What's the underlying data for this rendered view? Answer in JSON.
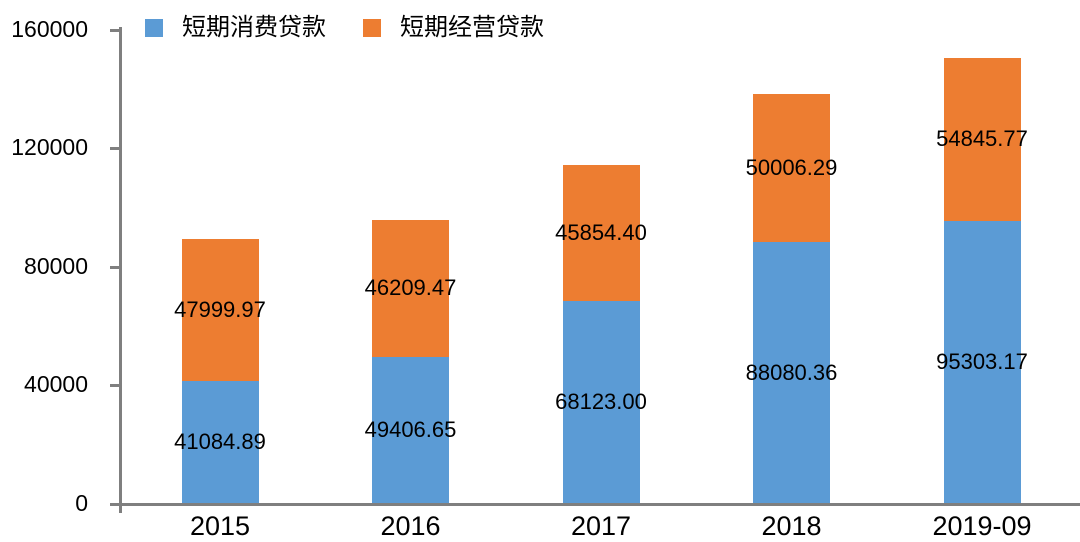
{
  "chart_data": {
    "type": "bar",
    "stacked": true,
    "title": "",
    "xlabel": "",
    "ylabel": "",
    "categories": [
      "2015",
      "2016",
      "2017",
      "2018",
      "2019-09"
    ],
    "series": [
      {
        "name": "短期消费贷款",
        "color": "#5B9BD5",
        "values": [
          41084.89,
          49406.65,
          68123.0,
          88080.36,
          95303.17
        ],
        "labels": [
          "41084.89",
          "49406.65",
          "68123.00",
          "88080.36",
          "95303.17"
        ]
      },
      {
        "name": "短期经营贷款",
        "color": "#ED7D31",
        "values": [
          47999.97,
          46209.47,
          45854.4,
          50006.29,
          54845.77
        ],
        "labels": [
          "47999.97",
          "46209.47",
          "45854.40",
          "50006.29",
          "54845.77"
        ]
      }
    ],
    "ylim": [
      0,
      160000
    ],
    "yticks": [
      0,
      40000,
      80000,
      120000,
      160000
    ],
    "ytick_labels": [
      "0",
      "40000",
      "80000",
      "120000",
      "160000"
    ],
    "legend_position": "top-left",
    "grid": false
  },
  "colors": {
    "axis": "#7f7f7f",
    "text": "#000000",
    "background": "#ffffff"
  }
}
